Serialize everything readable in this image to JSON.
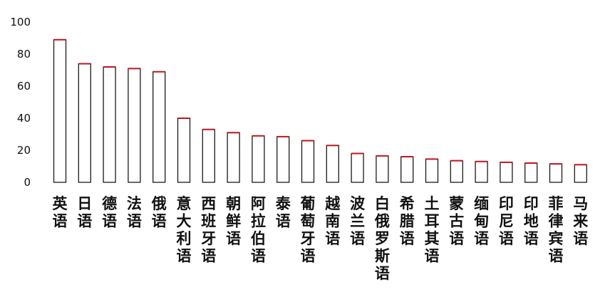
{
  "chart_data": {
    "type": "bar",
    "title": "",
    "xlabel": "",
    "ylabel": "",
    "ylim": [
      0,
      100
    ],
    "yticks": [
      0,
      20,
      40,
      60,
      80,
      100
    ],
    "grid": false,
    "legend": "none",
    "colors": {
      "bar_edge": "#1a1a1a",
      "bar_top": "#c4141e",
      "bar_fill": "#ffffff"
    },
    "categories": [
      "英语",
      "日语",
      "德语",
      "法语",
      "俄语",
      "意大利语",
      "西班牙语",
      "朝鲜语",
      "阿拉伯语",
      "泰语",
      "葡萄牙语",
      "越南语",
      "波兰语",
      "白俄罗斯语",
      "希腊语",
      "土耳其语",
      "蒙古语",
      "缅甸语",
      "印尼语",
      "印地语",
      "菲律宾语",
      "马来语"
    ],
    "values": [
      89,
      74,
      72,
      71,
      69,
      40,
      33,
      31,
      29,
      28.5,
      26,
      23,
      18,
      16.5,
      16,
      14.5,
      13.5,
      13,
      12.5,
      12,
      11.5,
      11
    ]
  }
}
